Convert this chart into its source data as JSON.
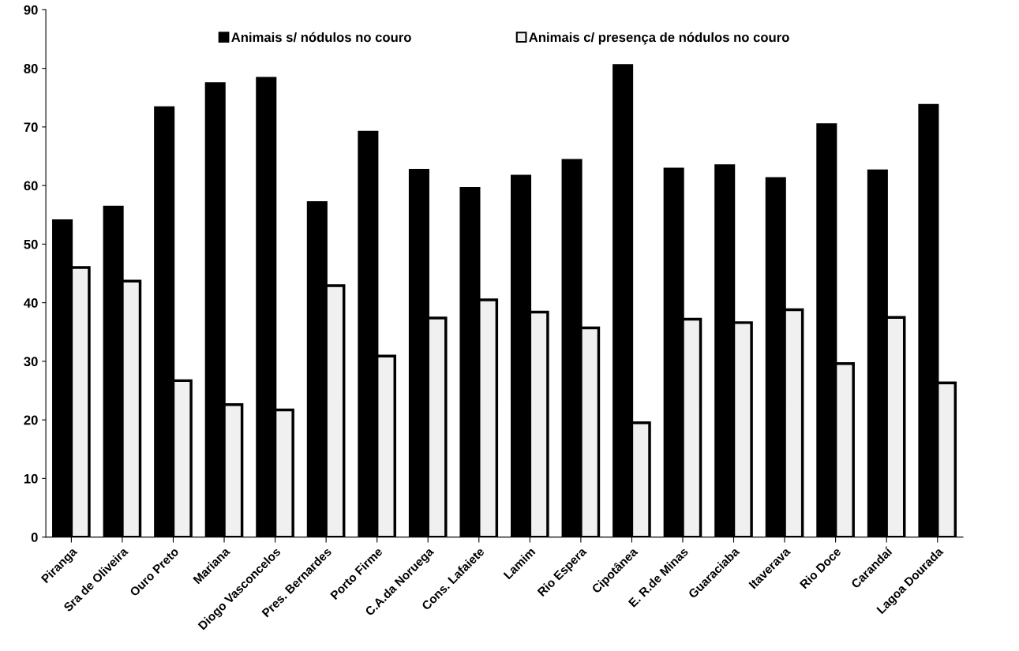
{
  "chart_data": {
    "type": "bar",
    "categories": [
      "Piranga",
      "Sra de Oliveira",
      "Ouro Preto",
      "Mariana",
      "Diogo Vasconcelos",
      "Pres. Bernardes",
      "Porto Firme",
      "C.A.da Noruega",
      "Cons. Lafaiete",
      "Lamim",
      "Rio Espera",
      "Cipotânea",
      "E. R.de Minas",
      "Guaraciaba",
      "Itaverava",
      "Rio Doce",
      "Carandaí",
      "Lagoa Dourada"
    ],
    "series": [
      {
        "name": "Animais s/ nódulos no couro",
        "color": "#000000",
        "values": [
          54,
          56.3,
          73.3,
          77.4,
          78.3,
          57.1,
          69.1,
          62.6,
          59.5,
          61.6,
          64.3,
          80.5,
          62.8,
          63.4,
          61.2,
          70.4,
          62.5,
          73.7
        ]
      },
      {
        "name": "Animais c/ presença de nódulos no couro",
        "color": "#f0f0f0",
        "values": [
          46,
          43.7,
          26.7,
          22.6,
          21.7,
          42.9,
          30.9,
          37.4,
          40.5,
          38.4,
          35.7,
          19.5,
          37.2,
          36.6,
          38.8,
          29.6,
          37.5,
          26.3
        ]
      }
    ],
    "ylim": [
      0,
      90
    ],
    "yticks": [
      0,
      10,
      20,
      30,
      40,
      50,
      60,
      70,
      80,
      90
    ],
    "grid": false,
    "legend": "top"
  }
}
